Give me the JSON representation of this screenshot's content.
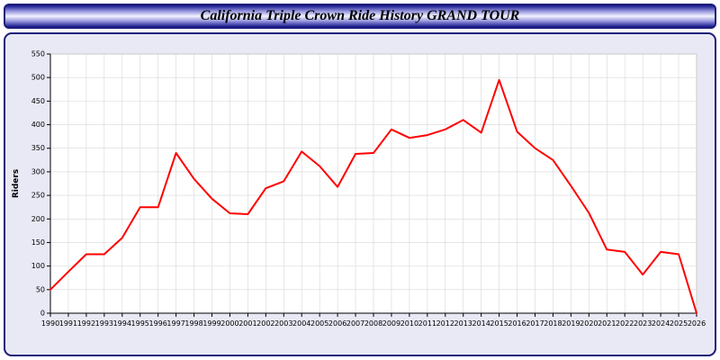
{
  "window": {
    "title": "California Triple Crown Ride History GRAND TOUR"
  },
  "chart_data": {
    "type": "line",
    "title": "California Triple Crown Ride History GRAND TOUR",
    "xlabel": "",
    "ylabel": "Riders",
    "x": [
      1990,
      1991,
      1992,
      1993,
      1994,
      1995,
      1996,
      1997,
      1998,
      1999,
      2000,
      2001,
      2002,
      2003,
      2004,
      2005,
      2006,
      2007,
      2008,
      2009,
      2010,
      2011,
      2012,
      2013,
      2014,
      2015,
      2016,
      2017,
      2018,
      2019,
      2020,
      2021,
      2022,
      2023,
      2024,
      2025,
      2026
    ],
    "values": [
      50,
      88,
      125,
      125,
      160,
      225,
      225,
      340,
      285,
      243,
      212,
      210,
      265,
      280,
      343,
      312,
      268,
      338,
      340,
      390,
      372,
      378,
      390,
      410,
      383,
      495,
      385,
      350,
      325,
      270,
      213,
      135,
      130,
      82,
      130,
      125,
      0
    ],
    "ylim": [
      0,
      550
    ],
    "ytick_step": 50,
    "grid": true,
    "legend": "none",
    "line_color": "#ff0000",
    "plot_bg": "#ffffff",
    "panel_bg": "#e9e9f6",
    "grid_color": "#d6d6d6",
    "axis_color": "#000000"
  }
}
